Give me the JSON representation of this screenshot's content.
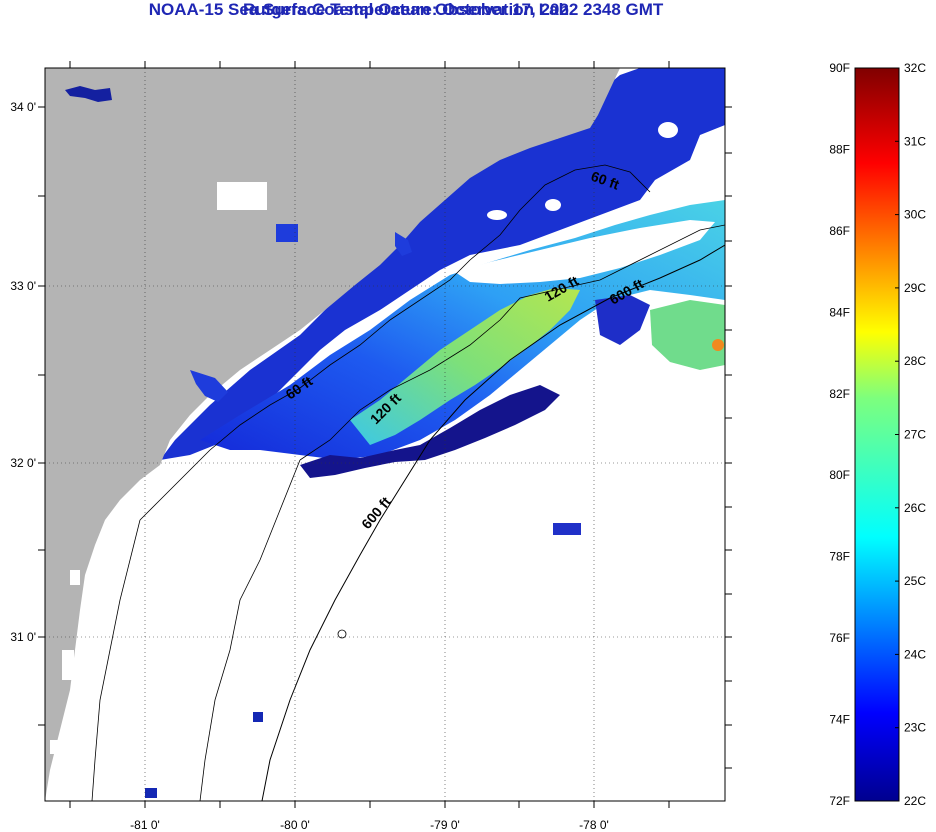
{
  "title": "NOAA-15 Sea Surface Temperature:  October 17, 2022 2348 GMT",
  "subtitle": "Rutgers Coastal Ocean Observation Lab",
  "map": {
    "lat_ticks": [
      "34 0'",
      "33 0'",
      "32 0'",
      "31 0'"
    ],
    "lon_ticks": [
      "-81 0'",
      "-80 0'",
      "-79 0'",
      "-78 0'"
    ],
    "contours": [
      "60 ft",
      "60 ft",
      "120 ft",
      "120 ft",
      "600 ft",
      "600 ft"
    ],
    "colors": {
      "land": "#b4b4b4",
      "nodata": "#ffffff"
    }
  },
  "colorbar": {
    "fahrenheit": [
      "90F",
      "88F",
      "86F",
      "84F",
      "82F",
      "80F",
      "78F",
      "76F",
      "74F",
      "72F"
    ],
    "celsius": [
      "32C",
      "31C",
      "30C",
      "29C",
      "28C",
      "27C",
      "26C",
      "25C",
      "24C",
      "23C",
      "22C"
    ],
    "range_f": [
      72,
      90
    ],
    "range_c": [
      22,
      32
    ]
  }
}
